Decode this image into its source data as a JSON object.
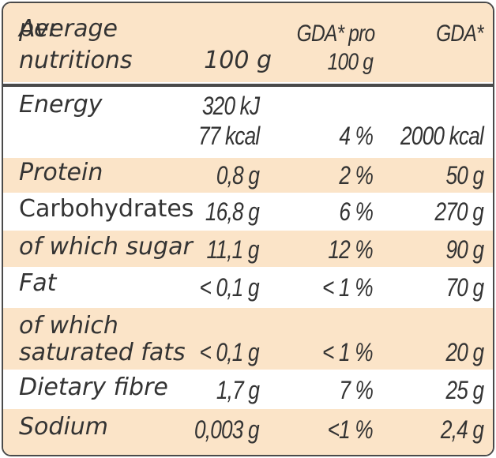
{
  "header": {
    "col1_line1": "Average",
    "col1_line2": "nutritions",
    "col2_line1": "per",
    "col2_line2": "100 g",
    "col3_line1": "GDA* pro",
    "col3_line2": "100 g",
    "col4": "GDA*"
  },
  "rows": [
    {
      "name": "Energy",
      "per100_line1": "320 kJ",
      "per100_line2": "77 kcal",
      "gda_pct": "4 %",
      "gda": "2000 kcal"
    },
    {
      "name": "Protein",
      "per100": "0,8 g",
      "gda_pct": "2 %",
      "gda": "50 g"
    },
    {
      "name": "Carbohydrates",
      "per100": "16,8 g",
      "gda_pct": "6 %",
      "gda": "270 g"
    },
    {
      "name": "of which sugar",
      "per100": "11,1 g",
      "gda_pct": "12 %",
      "gda": "90 g"
    },
    {
      "name": "Fat",
      "per100": "< 0,1 g",
      "gda_pct": "< 1 %",
      "gda": "70 g"
    },
    {
      "name_line1": "of which",
      "name_line2": "saturated fats",
      "per100": "< 0,1 g",
      "gda_pct": "< 1 %",
      "gda": "20 g"
    },
    {
      "name": "Dietary fibre",
      "per100": "1,7 g",
      "gda_pct": "7 %",
      "gda": "25 g"
    },
    {
      "name": "Sodium",
      "per100": "0,003 g",
      "gda_pct": "<1 %",
      "gda": "2,4 g"
    }
  ],
  "colors": {
    "shaded_row": "#fbe4c8",
    "text": "#333333",
    "border": "#4a4a4a"
  }
}
